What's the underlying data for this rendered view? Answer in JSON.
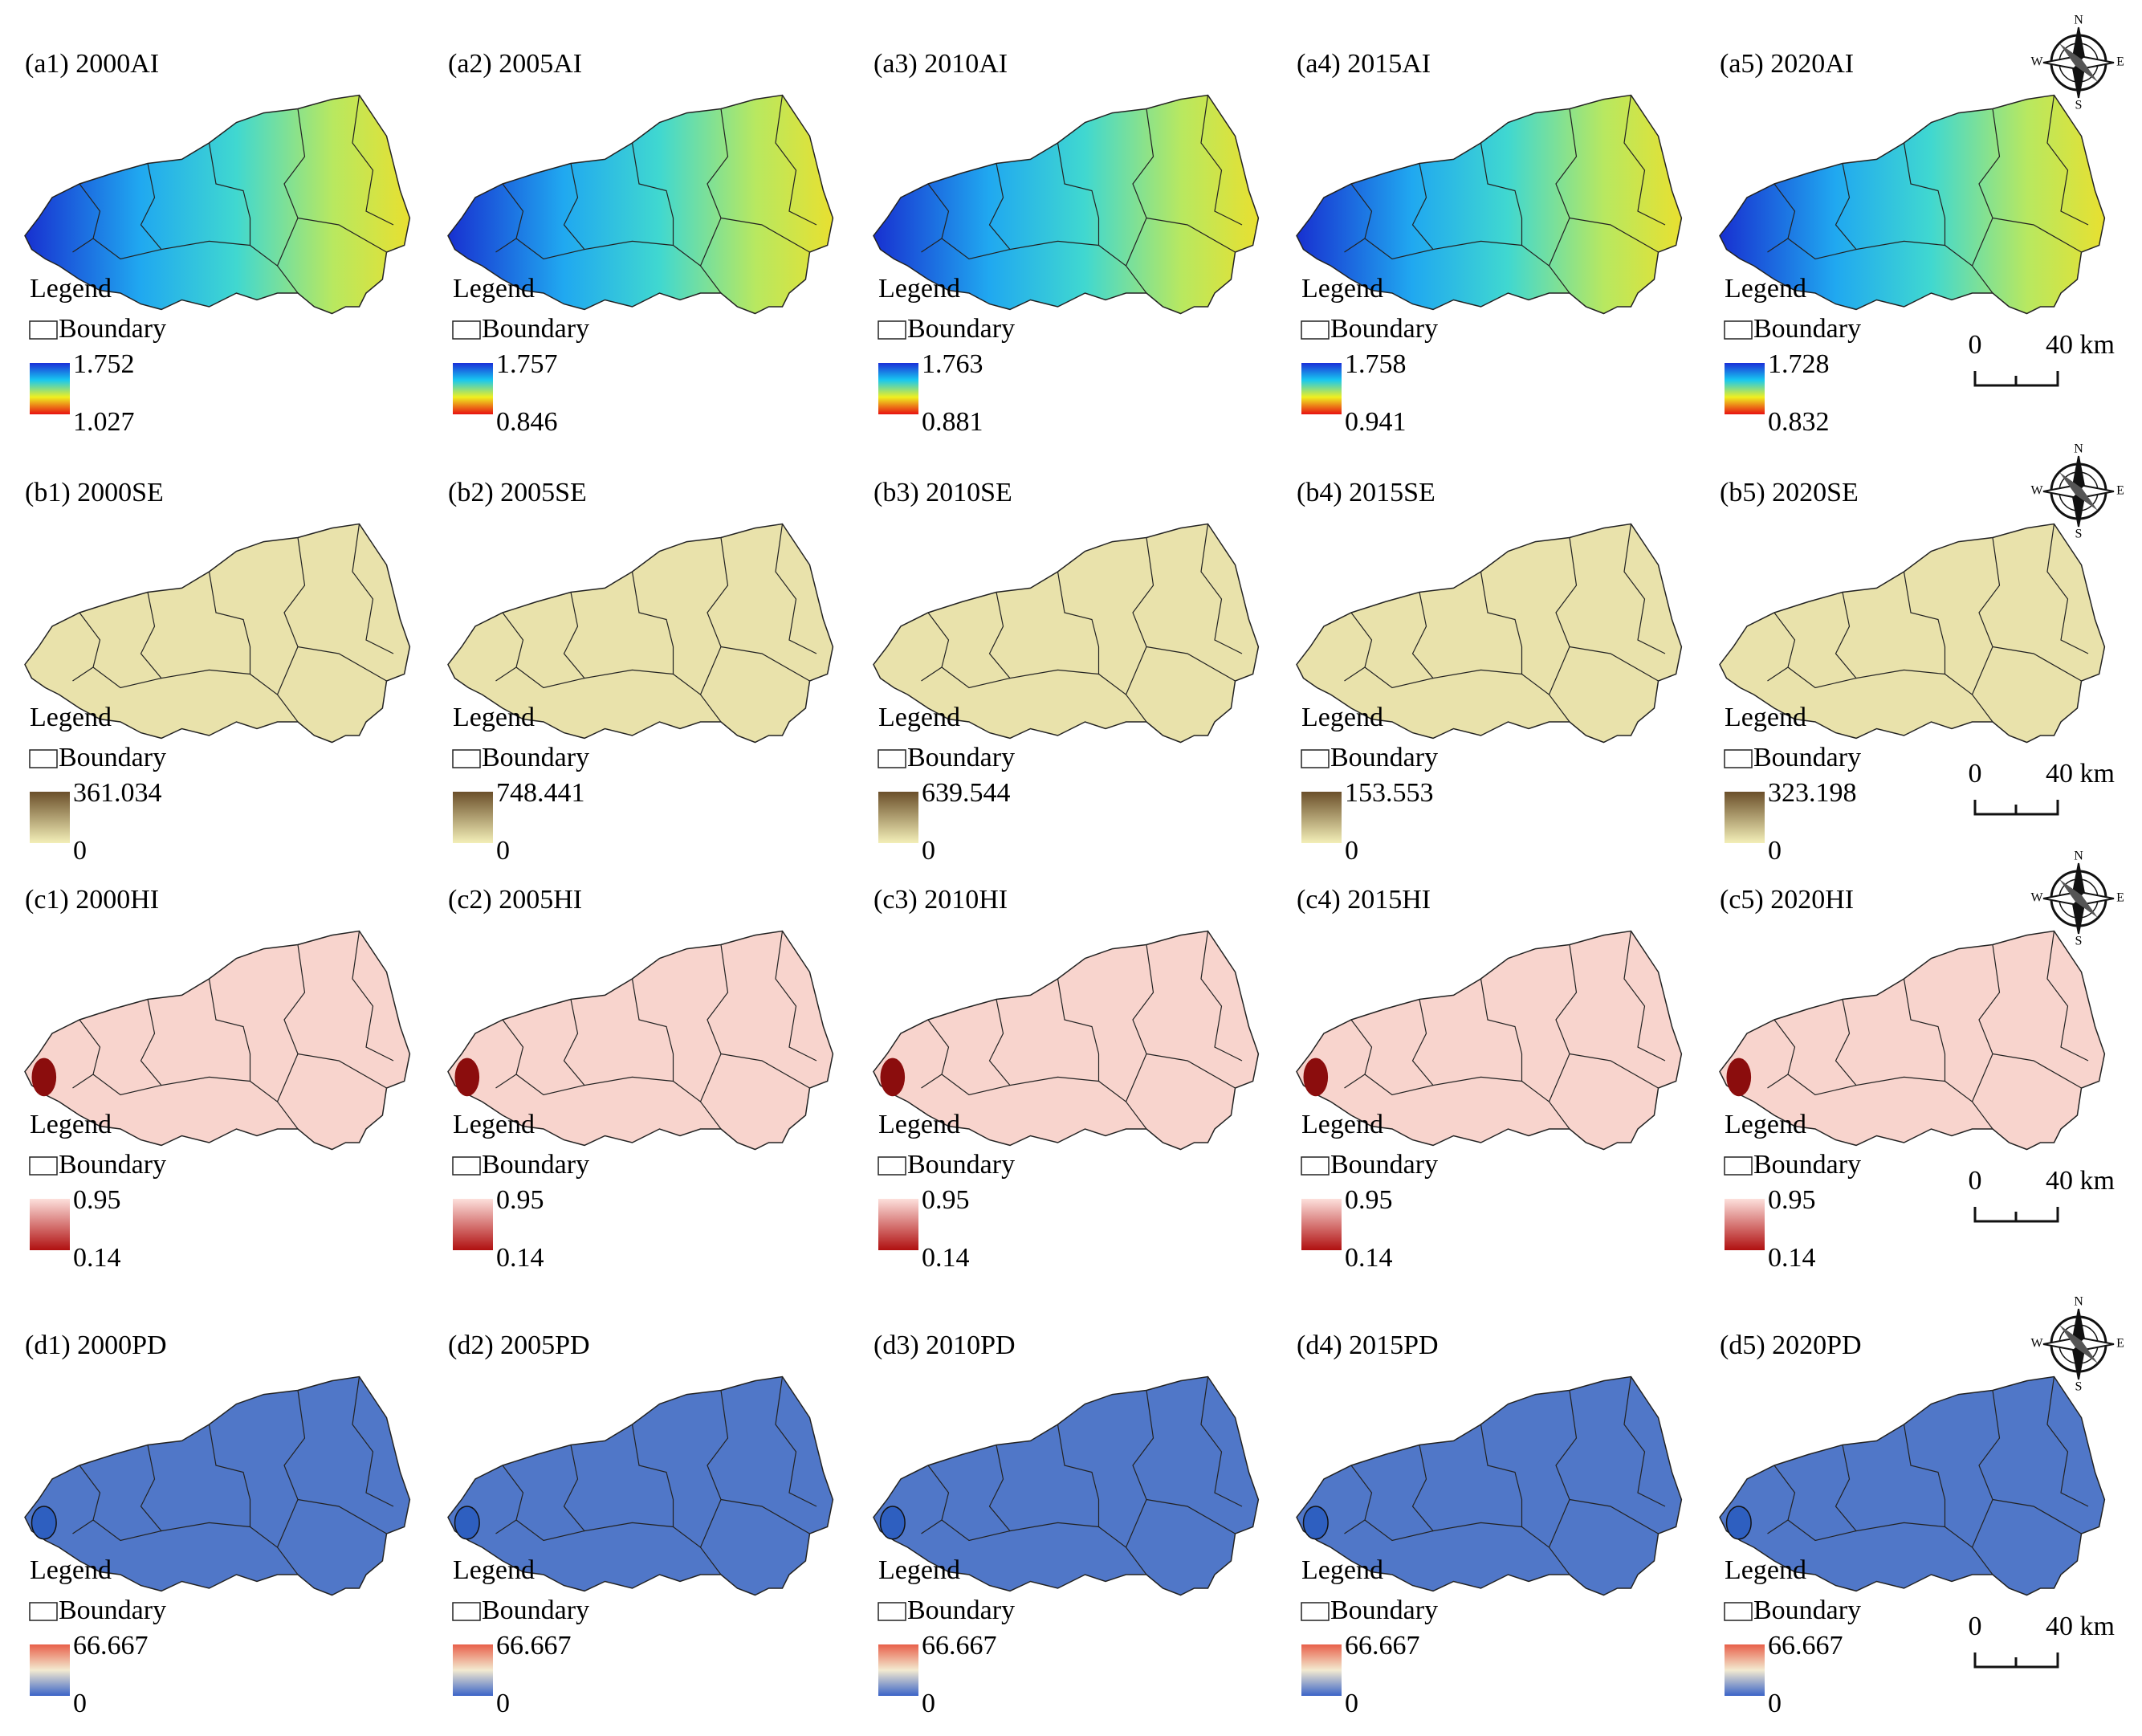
{
  "rows": [
    {
      "panels": [
        {
          "title": "(a1) 2000AI",
          "legend": "Legend",
          "boundary": "Boundary",
          "max": "1.752",
          "min": "1.027"
        },
        {
          "title": "(a2) 2005AI",
          "legend": "Legend",
          "boundary": "Boundary",
          "max": "1.757",
          "min": "0.846"
        },
        {
          "title": "(a3) 2010AI",
          "legend": "Legend",
          "boundary": "Boundary",
          "max": "1.763",
          "min": "0.881"
        },
        {
          "title": "(a4) 2015AI",
          "legend": "Legend",
          "boundary": "Boundary",
          "max": "1.758",
          "min": "0.941"
        },
        {
          "title": "(a5) 2020AI",
          "legend": "Legend",
          "boundary": "Boundary",
          "max": "1.728",
          "min": "0.832"
        }
      ],
      "ramp": [
        "#1a2fd8",
        "#18c8f0",
        "#f0f020",
        "#e81010"
      ],
      "compass": {
        "n": "N",
        "e": "E",
        "s": "S",
        "w": "W"
      },
      "scale": {
        "start": "0",
        "end": "40 km"
      }
    },
    {
      "panels": [
        {
          "title": "(b1) 2000SE",
          "legend": "Legend",
          "boundary": "Boundary",
          "max": "361.034",
          "min": "0"
        },
        {
          "title": "(b2) 2005SE",
          "legend": "Legend",
          "boundary": "Boundary",
          "max": "748.441",
          "min": "0"
        },
        {
          "title": "(b3) 2010SE",
          "legend": "Legend",
          "boundary": "Boundary",
          "max": "639.544",
          "min": "0"
        },
        {
          "title": "(b4) 2015SE",
          "legend": "Legend",
          "boundary": "Boundary",
          "max": "153.553",
          "min": "0"
        },
        {
          "title": "(b5) 2020SE",
          "legend": "Legend",
          "boundary": "Boundary",
          "max": "323.198",
          "min": "0"
        }
      ],
      "ramp": [
        "#6b4f2a",
        "#f3efb8"
      ],
      "compass": {
        "n": "N",
        "e": "E",
        "s": "S",
        "w": "W"
      },
      "scale": {
        "start": "0",
        "end": "40 km"
      }
    },
    {
      "panels": [
        {
          "title": "(c1) 2000HI",
          "legend": "Legend",
          "boundary": "Boundary",
          "max": "0.95",
          "min": "0.14"
        },
        {
          "title": "(c2) 2005HI",
          "legend": "Legend",
          "boundary": "Boundary",
          "max": "0.95",
          "min": "0.14"
        },
        {
          "title": "(c3) 2010HI",
          "legend": "Legend",
          "boundary": "Boundary",
          "max": "0.95",
          "min": "0.14"
        },
        {
          "title": "(c4) 2015HI",
          "legend": "Legend",
          "boundary": "Boundary",
          "max": "0.95",
          "min": "0.14"
        },
        {
          "title": "(c5) 2020HI",
          "legend": "Legend",
          "boundary": "Boundary",
          "max": "0.95",
          "min": "0.14"
        }
      ],
      "ramp": [
        "#fde0dc",
        "#b01010"
      ],
      "compass": {
        "n": "N",
        "e": "E",
        "s": "S",
        "w": "W"
      },
      "scale": {
        "start": "0",
        "end": "40 km"
      }
    },
    {
      "panels": [
        {
          "title": "(d1) 2000PD",
          "legend": "Legend",
          "boundary": "Boundary",
          "max": "66.667",
          "min": "0"
        },
        {
          "title": "(d2) 2005PD",
          "legend": "Legend",
          "boundary": "Boundary",
          "max": "66.667",
          "min": "0"
        },
        {
          "title": "(d3) 2010PD",
          "legend": "Legend",
          "boundary": "Boundary",
          "max": "66.667",
          "min": "0"
        },
        {
          "title": "(d4) 2015PD",
          "legend": "Legend",
          "boundary": "Boundary",
          "max": "66.667",
          "min": "0"
        },
        {
          "title": "(d5) 2020PD",
          "legend": "Legend",
          "boundary": "Boundary",
          "max": "66.667",
          "min": "0"
        }
      ],
      "ramp": [
        "#e8604a",
        "#f3ead0",
        "#3b64c8"
      ],
      "compass": {
        "n": "N",
        "e": "E",
        "s": "S",
        "w": "W"
      },
      "scale": {
        "start": "0",
        "end": "40 km"
      }
    }
  ]
}
